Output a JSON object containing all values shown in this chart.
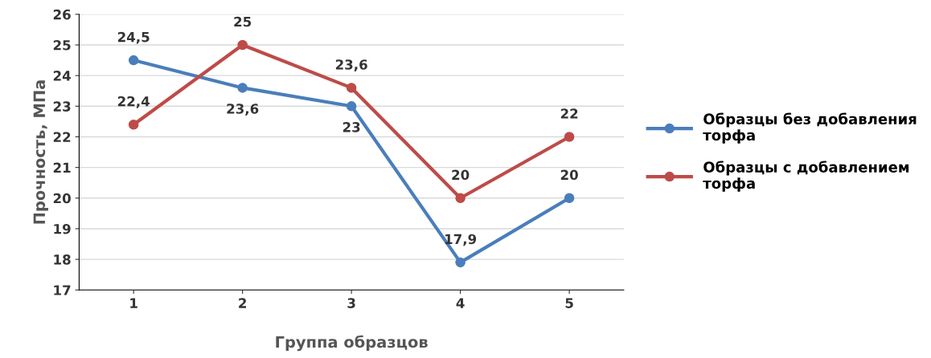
{
  "chart_data": {
    "type": "line",
    "xlabel": "Группа образцов",
    "ylabel": "Прочность, МПа",
    "categories": [
      "1",
      "2",
      "3",
      "4",
      "5"
    ],
    "series": [
      {
        "name": "Образцы без добавления торфа",
        "color": "#4a7ebb",
        "values": [
          24.5,
          23.6,
          23,
          17.9,
          20
        ],
        "value_labels": [
          "24,5",
          "23,6",
          "23",
          "17,9",
          "20"
        ]
      },
      {
        "name": "Образцы с добавлением торфа",
        "color": "#be4b48",
        "values": [
          22.4,
          25,
          23.6,
          20,
          22
        ],
        "value_labels": [
          "22,4",
          "25",
          "23,6",
          "20",
          "22"
        ]
      }
    ],
    "ylim": [
      17,
      26
    ],
    "yticks": [
      17,
      18,
      19,
      20,
      21,
      22,
      23,
      24,
      25,
      26
    ],
    "grid": "y",
    "legend": "right",
    "marker": "circle",
    "line_style": "solid"
  }
}
